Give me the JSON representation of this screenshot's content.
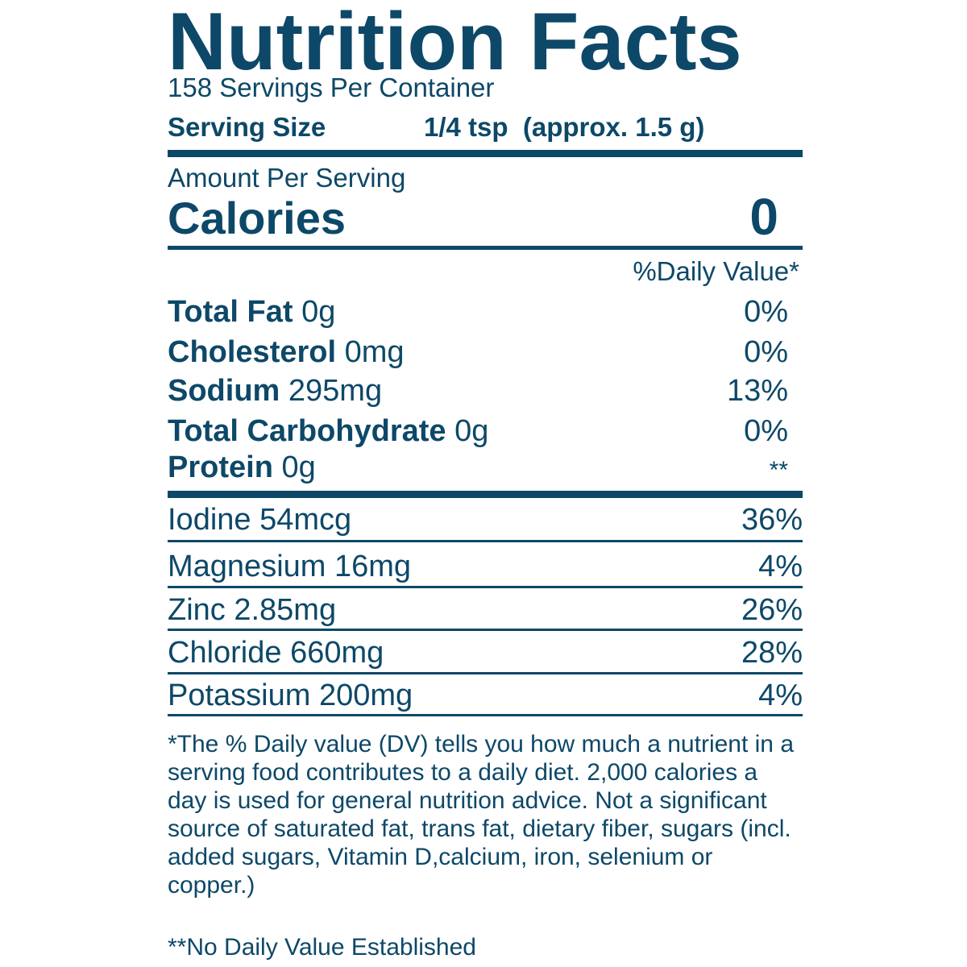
{
  "label": {
    "title": "Nutrition Facts",
    "servings_per_container": "158 Servings Per Container",
    "serving_size_label": "Serving Size",
    "serving_size_value": "1/4 tsp  (approx. 1.5 g)",
    "amount_per_serving": "Amount Per Serving",
    "calories_label": "Calories",
    "calories_value": "0",
    "daily_value_header": "%Daily Value*"
  },
  "nutrients": [
    {
      "name": "Total Fat",
      "amount": "0g",
      "dv": "0%"
    },
    {
      "name": "Cholesterol",
      "amount": "0mg",
      "dv": "0%"
    },
    {
      "name": "Sodium",
      "amount": "295mg",
      "dv": "13%"
    },
    {
      "name": "Total Carbohydrate",
      "amount": "0g",
      "dv": "0%"
    },
    {
      "name": "Protein",
      "amount": "0g",
      "dv": "**"
    }
  ],
  "minerals": [
    {
      "label": "Iodine 54mcg",
      "dv": "36%"
    },
    {
      "label": "Magnesium 16mg",
      "dv": "4%"
    },
    {
      "label": "Zinc 2.85mg",
      "dv": "26%"
    },
    {
      "label": "Chloride 660mg",
      "dv": "28%"
    },
    {
      "label": "Potassium 200mg",
      "dv": "4%"
    }
  ],
  "footnotes": {
    "daily_value_note": "*The % Daily value (DV) tells you how much a nutrient in a serving food contributes to a daily diet. 2,000 calories a day is used for general nutrition advice. Not a significant source of saturated fat, trans fat, dietary fiber, sugars (incl. added sugars, Vitamin D,calcium, iron, selenium or copper.)",
    "no_dv_note": "**No Daily Value Established"
  },
  "colors": {
    "text": "#0d4868",
    "background": "#ffffff"
  }
}
